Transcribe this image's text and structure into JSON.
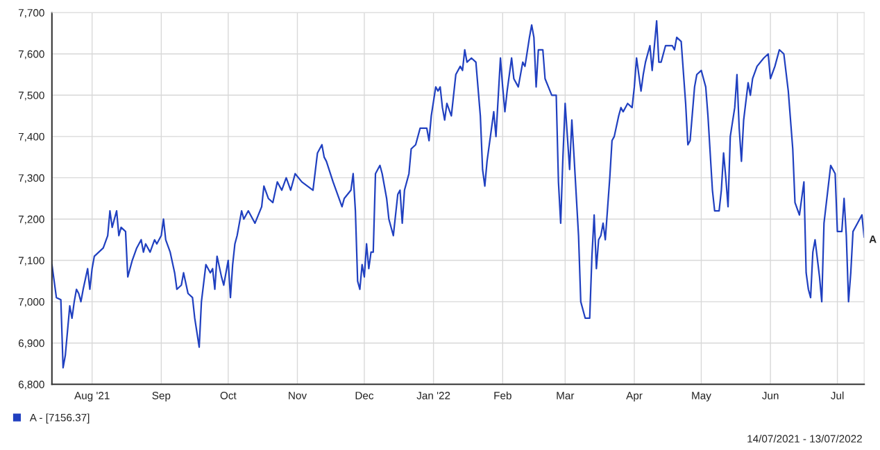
{
  "chart_data": {
    "type": "line",
    "x": [
      "2021-07-14",
      "2021-07-16",
      "2021-07-18",
      "2021-07-19",
      "2021-07-20",
      "2021-07-22",
      "2021-07-23",
      "2021-07-24",
      "2021-07-25",
      "2021-07-26",
      "2021-07-27",
      "2021-07-28",
      "2021-07-30",
      "2021-07-31",
      "2021-08-01",
      "2021-08-02",
      "2021-08-04",
      "2021-08-06",
      "2021-08-08",
      "2021-08-09",
      "2021-08-10",
      "2021-08-12",
      "2021-08-13",
      "2021-08-14",
      "2021-08-16",
      "2021-08-17",
      "2021-08-19",
      "2021-08-21",
      "2021-08-23",
      "2021-08-24",
      "2021-08-25",
      "2021-08-27",
      "2021-08-29",
      "2021-08-30",
      "2021-09-01",
      "2021-09-02",
      "2021-09-03",
      "2021-09-05",
      "2021-09-07",
      "2021-09-08",
      "2021-09-10",
      "2021-09-11",
      "2021-09-13",
      "2021-09-15",
      "2021-09-16",
      "2021-09-18",
      "2021-09-19",
      "2021-09-21",
      "2021-09-23",
      "2021-09-24",
      "2021-09-25",
      "2021-09-26",
      "2021-09-28",
      "2021-09-29",
      "2021-10-01",
      "2021-10-02",
      "2021-10-03",
      "2021-10-04",
      "2021-10-05",
      "2021-10-07",
      "2021-10-08",
      "2021-10-10",
      "2021-10-13",
      "2021-10-16",
      "2021-10-17",
      "2021-10-19",
      "2021-10-21",
      "2021-10-23",
      "2021-10-25",
      "2021-10-27",
      "2021-10-29",
      "2021-10-31",
      "2021-11-03",
      "2021-11-08",
      "2021-11-10",
      "2021-11-12",
      "2021-11-13",
      "2021-11-14",
      "2021-11-17",
      "2021-11-21",
      "2021-11-22",
      "2021-11-25",
      "2021-11-26",
      "2021-11-27",
      "2021-11-28",
      "2021-11-29",
      "2021-11-30",
      "2021-12-01",
      "2021-12-02",
      "2021-12-03",
      "2021-12-04",
      "2021-12-05",
      "2021-12-06",
      "2021-12-08",
      "2021-12-09",
      "2021-12-11",
      "2021-12-12",
      "2021-12-14",
      "2021-12-16",
      "2021-12-17",
      "2021-12-18",
      "2021-12-19",
      "2021-12-21",
      "2021-12-22",
      "2021-12-24",
      "2021-12-26",
      "2021-12-29",
      "2021-12-30",
      "2021-12-31",
      "2022-01-02",
      "2022-01-03",
      "2022-01-04",
      "2022-01-05",
      "2022-01-06",
      "2022-01-07",
      "2022-01-09",
      "2022-01-11",
      "2022-01-13",
      "2022-01-14",
      "2022-01-15",
      "2022-01-16",
      "2022-01-18",
      "2022-01-20",
      "2022-01-22",
      "2022-01-23",
      "2022-01-24",
      "2022-01-25",
      "2022-01-28",
      "2022-01-29",
      "2022-01-31",
      "2022-02-01",
      "2022-02-02",
      "2022-02-03",
      "2022-02-05",
      "2022-02-06",
      "2022-02-08",
      "2022-02-10",
      "2022-02-11",
      "2022-02-13",
      "2022-02-14",
      "2022-02-15",
      "2022-02-16",
      "2022-02-17",
      "2022-02-19",
      "2022-02-20",
      "2022-02-23",
      "2022-02-25",
      "2022-02-26",
      "2022-02-27",
      "2022-02-28",
      "2022-03-01",
      "2022-03-02",
      "2022-03-03",
      "2022-03-04",
      "2022-03-05",
      "2022-03-07",
      "2022-03-08",
      "2022-03-10",
      "2022-03-12",
      "2022-03-13",
      "2022-03-14",
      "2022-03-15",
      "2022-03-16",
      "2022-03-17",
      "2022-03-18",
      "2022-03-19",
      "2022-03-21",
      "2022-03-22",
      "2022-03-23",
      "2022-03-25",
      "2022-03-26",
      "2022-03-27",
      "2022-03-28",
      "2022-03-29",
      "2022-03-31",
      "2022-04-01",
      "2022-04-02",
      "2022-04-04",
      "2022-04-05",
      "2022-04-06",
      "2022-04-08",
      "2022-04-09",
      "2022-04-11",
      "2022-04-12",
      "2022-04-13",
      "2022-04-15",
      "2022-04-18",
      "2022-04-19",
      "2022-04-20",
      "2022-04-22",
      "2022-04-24",
      "2022-04-25",
      "2022-04-26",
      "2022-04-28",
      "2022-04-29",
      "2022-05-01",
      "2022-05-02",
      "2022-05-03",
      "2022-05-04",
      "2022-05-06",
      "2022-05-07",
      "2022-05-08",
      "2022-05-09",
      "2022-05-10",
      "2022-05-11",
      "2022-05-12",
      "2022-05-13",
      "2022-05-14",
      "2022-05-16",
      "2022-05-17",
      "2022-05-18",
      "2022-05-19",
      "2022-05-20",
      "2022-05-22",
      "2022-05-23",
      "2022-05-24",
      "2022-05-26",
      "2022-05-29",
      "2022-05-31",
      "2022-06-01",
      "2022-06-03",
      "2022-06-05",
      "2022-06-07",
      "2022-06-09",
      "2022-06-11",
      "2022-06-12",
      "2022-06-14",
      "2022-06-15",
      "2022-06-16",
      "2022-06-17",
      "2022-06-18",
      "2022-06-19",
      "2022-06-20",
      "2022-06-21",
      "2022-06-23",
      "2022-06-24",
      "2022-06-25",
      "2022-06-28",
      "2022-06-30",
      "2022-07-01",
      "2022-07-03",
      "2022-07-04",
      "2022-07-05",
      "2022-07-06",
      "2022-07-07",
      "2022-07-08",
      "2022-07-10",
      "2022-07-11",
      "2022-07-12",
      "2022-07-13"
    ],
    "series": [
      {
        "name": "A - [7156.37]",
        "color": "#2040c0",
        "values": [
          7090,
          7010,
          7005,
          6840,
          6870,
          6990,
          6960,
          7000,
          7030,
          7020,
          7000,
          7030,
          7080,
          7030,
          7080,
          7110,
          7120,
          7130,
          7160,
          7220,
          7180,
          7220,
          7160,
          7180,
          7170,
          7060,
          7100,
          7130,
          7150,
          7120,
          7140,
          7120,
          7150,
          7140,
          7160,
          7200,
          7150,
          7120,
          7070,
          7030,
          7040,
          7070,
          7020,
          7010,
          6960,
          6890,
          7000,
          7090,
          7070,
          7080,
          7030,
          7110,
          7060,
          7040,
          7100,
          7010,
          7090,
          7140,
          7160,
          7220,
          7200,
          7220,
          7190,
          7230,
          7280,
          7250,
          7240,
          7290,
          7270,
          7300,
          7270,
          7310,
          7290,
          7270,
          7360,
          7380,
          7350,
          7340,
          7290,
          7230,
          7250,
          7270,
          7310,
          7220,
          7050,
          7030,
          7090,
          7060,
          7140,
          7080,
          7120,
          7120,
          7310,
          7330,
          7310,
          7250,
          7200,
          7160,
          7260,
          7270,
          7190,
          7270,
          7310,
          7370,
          7380,
          7420,
          7420,
          7390,
          7450,
          7520,
          7510,
          7520,
          7470,
          7440,
          7480,
          7450,
          7550,
          7570,
          7560,
          7610,
          7580,
          7590,
          7580,
          7450,
          7320,
          7280,
          7340,
          7460,
          7400,
          7590,
          7520,
          7460,
          7510,
          7590,
          7540,
          7520,
          7580,
          7570,
          7640,
          7670,
          7640,
          7520,
          7610,
          7610,
          7540,
          7500,
          7500,
          7290,
          7190,
          7350,
          7480,
          7400,
          7320,
          7440,
          7350,
          7160,
          7000,
          6960,
          6960,
          7110,
          7210,
          7080,
          7150,
          7160,
          7190,
          7150,
          7300,
          7390,
          7400,
          7450,
          7470,
          7460,
          7470,
          7480,
          7470,
          7520,
          7590,
          7510,
          7550,
          7580,
          7620,
          7560,
          7680,
          7580,
          7580,
          7620,
          7620,
          7610,
          7640,
          7630,
          7480,
          7380,
          7390,
          7520,
          7550,
          7560,
          7540,
          7520,
          7450,
          7270,
          7220,
          7220,
          7220,
          7270,
          7360,
          7300,
          7230,
          7400,
          7470,
          7550,
          7420,
          7340,
          7440,
          7530,
          7500,
          7540,
          7570,
          7590,
          7600,
          7540,
          7570,
          7610,
          7600,
          7510,
          7370,
          7240,
          7210,
          7250,
          7290,
          7070,
          7030,
          7010,
          7120,
          7150,
          7060,
          7000,
          7190,
          7330,
          7310,
          7170,
          7170,
          7250,
          7160,
          7000,
          7070,
          7170,
          7190,
          7200,
          7210,
          7156
        ]
      }
    ],
    "xlim": [
      "2021-07-14",
      "2022-07-13"
    ],
    "xticks": [
      {
        "value": "2021-08-01",
        "label": "Aug '21"
      },
      {
        "value": "2021-09-01",
        "label": "Sep"
      },
      {
        "value": "2021-10-01",
        "label": "Oct"
      },
      {
        "value": "2021-11-01",
        "label": "Nov"
      },
      {
        "value": "2021-12-01",
        "label": "Dec"
      },
      {
        "value": "2022-01-01",
        "label": "Jan '22"
      },
      {
        "value": "2022-02-01",
        "label": "Feb"
      },
      {
        "value": "2022-03-01",
        "label": "Mar"
      },
      {
        "value": "2022-04-01",
        "label": "Apr"
      },
      {
        "value": "2022-05-01",
        "label": "May"
      },
      {
        "value": "2022-06-01",
        "label": "Jun"
      },
      {
        "value": "2022-07-01",
        "label": "Jul"
      }
    ],
    "ylim": [
      6800,
      7700
    ],
    "yticks": [
      {
        "value": 6800,
        "label": "6,800"
      },
      {
        "value": 6900,
        "label": "6,900"
      },
      {
        "value": 7000,
        "label": "7,000"
      },
      {
        "value": 7100,
        "label": "7,100"
      },
      {
        "value": 7200,
        "label": "7,200"
      },
      {
        "value": 7300,
        "label": "7,300"
      },
      {
        "value": 7400,
        "label": "7,400"
      },
      {
        "value": 7500,
        "label": "7,500"
      },
      {
        "value": 7600,
        "label": "7,600"
      },
      {
        "value": 7700,
        "label": "7,700"
      }
    ],
    "grid": true,
    "legend": "bottom left",
    "annotations": [
      {
        "text": "A",
        "x": "2022-07-13",
        "y": 7156
      },
      "14/07/2021 - 13/07/2022"
    ]
  }
}
